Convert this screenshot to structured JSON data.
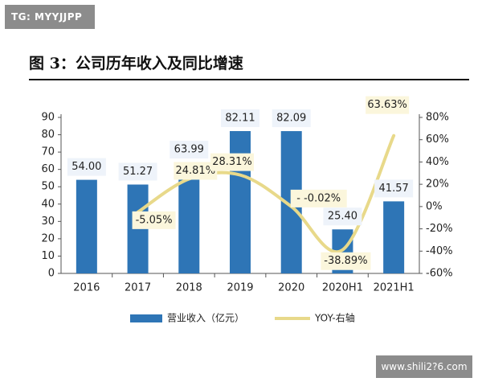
{
  "badge": {
    "text": "TG: MYYJJPP"
  },
  "figure": {
    "title": "图 3：公司历年收入及同比增速"
  },
  "watermark": {
    "text": "www.shili2?6.com"
  },
  "colors": {
    "bar": "#2e75b6",
    "line": "#e8d98a",
    "label_bg": "#eef3fa",
    "line_label_bg": "#fbf6dc"
  },
  "chart_data": {
    "type": "bar",
    "categories": [
      "2016",
      "2017",
      "2018",
      "2019",
      "2020",
      "2020H1",
      "2021H1"
    ],
    "series": [
      {
        "name": "营业收入（亿元）",
        "type": "bar",
        "axis": "left",
        "values": [
          54.0,
          51.27,
          63.99,
          82.11,
          82.09,
          25.4,
          41.57
        ],
        "labels": [
          "54.00",
          "51.27",
          "63.99",
          "82.11",
          "82.09",
          "25.40",
          "41.57"
        ]
      },
      {
        "name": "YOY-右轴",
        "type": "line",
        "axis": "right",
        "values": [
          null,
          -5.05,
          24.81,
          28.31,
          -0.02,
          -38.89,
          63.63
        ],
        "labels": [
          "",
          "-5.05%",
          "24.81%",
          "28.31%",
          "- -0.02%",
          "-38.89%",
          "63.63%"
        ]
      }
    ],
    "yleft": {
      "lim": [
        0,
        90
      ],
      "ticks": [
        "0",
        "10",
        "20",
        "30",
        "40",
        "50",
        "60",
        "70",
        "80",
        "90"
      ]
    },
    "yright": {
      "lim": [
        -60,
        80
      ],
      "ticks": [
        "-60%",
        "-40%",
        "-20%",
        "0%",
        "20%",
        "40%",
        "60%",
        "80%"
      ]
    },
    "legend_position": "bottom",
    "grid": false
  }
}
